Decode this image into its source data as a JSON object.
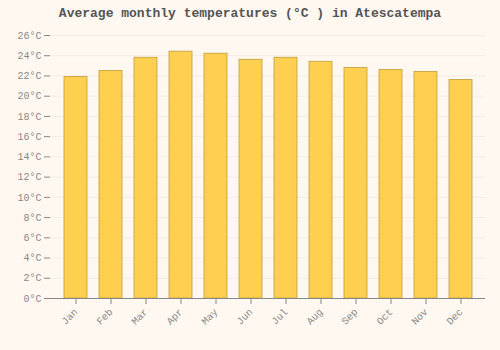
{
  "chart_data": {
    "type": "bar",
    "title": "Average monthly temperatures (°C ) in Atescatempa",
    "categories": [
      "Jan",
      "Feb",
      "Mar",
      "Apr",
      "May",
      "Jun",
      "Jul",
      "Aug",
      "Sep",
      "Oct",
      "Nov",
      "Dec"
    ],
    "values": [
      21.9,
      22.5,
      23.8,
      24.4,
      24.2,
      23.6,
      23.8,
      23.4,
      22.8,
      22.6,
      22.4,
      21.6
    ],
    "color": "#FFD050",
    "ylim": [
      0,
      26
    ],
    "yticks": [
      {
        "value": 0,
        "label": "0°C"
      },
      {
        "value": 2,
        "label": "2°C"
      },
      {
        "value": 4,
        "label": "4°C"
      },
      {
        "value": 6,
        "label": "6°C"
      },
      {
        "value": 8,
        "label": "8°C"
      },
      {
        "value": 10,
        "label": "10°C"
      },
      {
        "value": 12,
        "label": "12°C"
      },
      {
        "value": 14,
        "label": "14°C"
      },
      {
        "value": 16,
        "label": "16°C"
      },
      {
        "value": 18,
        "label": "18°C"
      },
      {
        "value": 20,
        "label": "20°C"
      },
      {
        "value": 22,
        "label": "22°C"
      },
      {
        "value": 24,
        "label": "24°C"
      },
      {
        "value": 26,
        "label": "26°C"
      }
    ],
    "grid": true
  }
}
